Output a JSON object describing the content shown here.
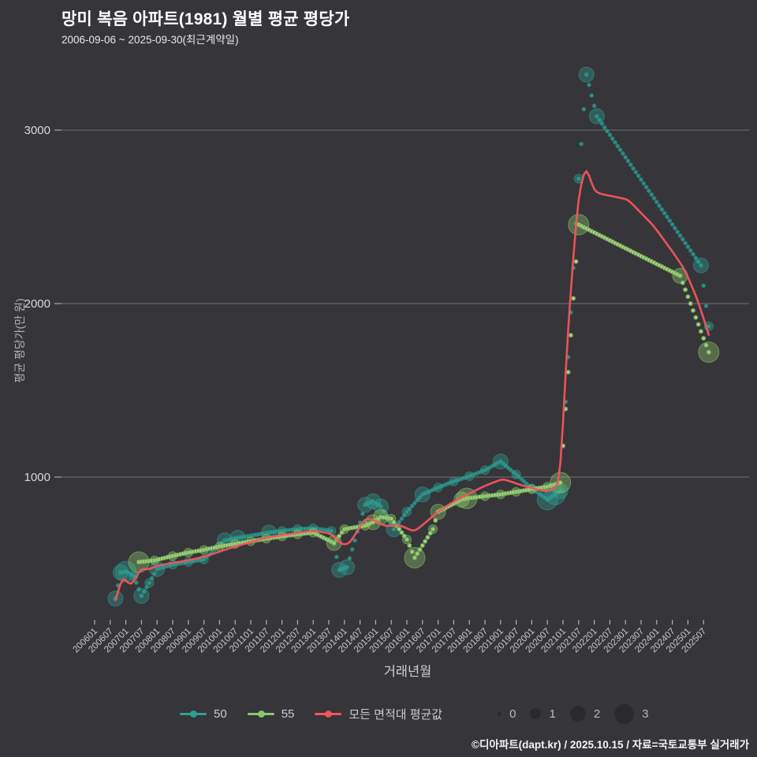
{
  "chart_data": {
    "type": "line",
    "title": "망미 복음 아파트(1981) 월별 평균 평당가",
    "subtitle": "2006-09-06 ~ 2025-09-30(최근계약일)",
    "x_axis": {
      "label": "거래년월",
      "tick_labels": [
        "200601",
        "200607",
        "200701",
        "200707",
        "200801",
        "200807",
        "200901",
        "200907",
        "201001",
        "201007",
        "201101",
        "201107",
        "201201",
        "201207",
        "201301",
        "201307",
        "201401",
        "201407",
        "201501",
        "201507",
        "201601",
        "201607",
        "201701",
        "201707",
        "201801",
        "201807",
        "201901",
        "201907",
        "202001",
        "202007",
        "202101",
        "202107",
        "202201",
        "202207",
        "202301",
        "202307",
        "202401",
        "202407",
        "202501",
        "202507"
      ]
    },
    "y_axis": {
      "label": "평균 평당가(만 원)",
      "ticks": [
        1000,
        2000,
        3000
      ],
      "range": [
        200,
        3450
      ]
    },
    "grid": "horizontal",
    "legend_position": "bottom",
    "series": [
      {
        "name": "50",
        "color": "#2fa094",
        "style": "dotted-line-with-bubbles",
        "points": [
          [
            "200609",
            300,
            2
          ],
          [
            "200611",
            450,
            2
          ],
          [
            "200701",
            455,
            3
          ],
          [
            "200704",
            430,
            1
          ],
          [
            "200707",
            315,
            2
          ],
          [
            "200710",
            390,
            1
          ],
          [
            "200801",
            470,
            2
          ],
          [
            "200807",
            495,
            1
          ],
          [
            "200901",
            510,
            1
          ],
          [
            "200907",
            525,
            1
          ],
          [
            "201003",
            635,
            2
          ],
          [
            "201008",
            650,
            2
          ],
          [
            "201108",
            680,
            2
          ],
          [
            "201201",
            690,
            1
          ],
          [
            "201207",
            700,
            1
          ],
          [
            "201301",
            705,
            1
          ],
          [
            "201308",
            690,
            1
          ],
          [
            "201311",
            465,
            2
          ],
          [
            "201402",
            480,
            2
          ],
          [
            "201409",
            840,
            2
          ],
          [
            "201412",
            860,
            2
          ],
          [
            "201503",
            830,
            2
          ],
          [
            "201508",
            700,
            2
          ],
          [
            "201601",
            800,
            1
          ],
          [
            "201607",
            900,
            2
          ],
          [
            "201701",
            940,
            1
          ],
          [
            "201707",
            975,
            1
          ],
          [
            "201801",
            1005,
            1
          ],
          [
            "201807",
            1040,
            1
          ],
          [
            "201901",
            1090,
            2
          ],
          [
            "201907",
            1015,
            1
          ],
          [
            "202001",
            935,
            1
          ],
          [
            "202007",
            870,
            3
          ],
          [
            "202010",
            900,
            3
          ],
          [
            "202012",
            920,
            2
          ],
          [
            "202107",
            2720,
            1
          ],
          [
            "202110",
            3320,
            2
          ],
          [
            "202202",
            3080,
            2
          ],
          [
            "202506",
            2220,
            2
          ],
          [
            "202509",
            1870,
            1
          ]
        ]
      },
      {
        "name": "55",
        "color": "#8cc96e",
        "style": "dotted-line-with-bubbles",
        "points": [
          [
            "200706",
            510,
            3
          ],
          [
            "200712",
            520,
            1
          ],
          [
            "200807",
            545,
            1
          ],
          [
            "200901",
            565,
            1
          ],
          [
            "200907",
            580,
            1
          ],
          [
            "201001",
            600,
            1
          ],
          [
            "201007",
            615,
            1
          ],
          [
            "201101",
            630,
            1
          ],
          [
            "201107",
            645,
            1
          ],
          [
            "201201",
            658,
            1
          ],
          [
            "201207",
            670,
            1
          ],
          [
            "201301",
            680,
            1
          ],
          [
            "201309",
            620,
            2
          ],
          [
            "201401",
            700,
            1
          ],
          [
            "201409",
            720,
            1
          ],
          [
            "201412",
            740,
            2
          ],
          [
            "201503",
            770,
            2
          ],
          [
            "201507",
            760,
            1
          ],
          [
            "201601",
            640,
            1
          ],
          [
            "201604",
            535,
            3
          ],
          [
            "201611",
            700,
            1
          ],
          [
            "201701",
            800,
            2
          ],
          [
            "201710",
            870,
            2
          ],
          [
            "201712",
            877,
            3
          ],
          [
            "201807",
            890,
            1
          ],
          [
            "201901",
            900,
            1
          ],
          [
            "201907",
            915,
            1
          ],
          [
            "202001",
            930,
            1
          ],
          [
            "202007",
            945,
            1
          ],
          [
            "202012",
            968,
            3
          ],
          [
            "202107",
            2455,
            3
          ],
          [
            "202410",
            2160,
            2
          ],
          [
            "202509",
            1720,
            3
          ]
        ]
      },
      {
        "name": "모든 면적대 평균값",
        "color": "#f4555c",
        "style": "smooth-line",
        "points": [
          [
            "200609",
            290
          ],
          [
            "200612",
            440
          ],
          [
            "200703",
            365
          ],
          [
            "200707",
            480
          ],
          [
            "200710",
            465
          ],
          [
            "200801",
            490
          ],
          [
            "200807",
            505
          ],
          [
            "200901",
            520
          ],
          [
            "200907",
            540
          ],
          [
            "201001",
            570
          ],
          [
            "201007",
            600
          ],
          [
            "201101",
            625
          ],
          [
            "201107",
            650
          ],
          [
            "201201",
            665
          ],
          [
            "201207",
            678
          ],
          [
            "201301",
            690
          ],
          [
            "201308",
            675
          ],
          [
            "201312",
            608
          ],
          [
            "201403",
            615
          ],
          [
            "201409",
            765
          ],
          [
            "201412",
            755
          ],
          [
            "201505",
            715
          ],
          [
            "201510",
            725
          ],
          [
            "201604",
            685
          ],
          [
            "201701",
            800
          ],
          [
            "201707",
            858
          ],
          [
            "201801",
            905
          ],
          [
            "201807",
            950
          ],
          [
            "201902",
            990
          ],
          [
            "201908",
            958
          ],
          [
            "202003",
            928
          ],
          [
            "202008",
            918
          ],
          [
            "202012",
            960
          ],
          [
            "202103",
            1900
          ],
          [
            "202107",
            2650
          ],
          [
            "202110",
            2810
          ],
          [
            "202201",
            2640
          ],
          [
            "202302",
            2600
          ],
          [
            "202312",
            2445
          ],
          [
            "202408",
            2280
          ],
          [
            "202412",
            2190
          ],
          [
            "202505",
            2010
          ],
          [
            "202509",
            1820
          ]
        ]
      }
    ],
    "size_legend": {
      "labels": [
        "0",
        "1",
        "2",
        "3"
      ]
    }
  },
  "footer": {
    "credit": "©디아파트(dapt.kr) / 2025.10.15 / 자료=국토교통부 실거래가"
  }
}
